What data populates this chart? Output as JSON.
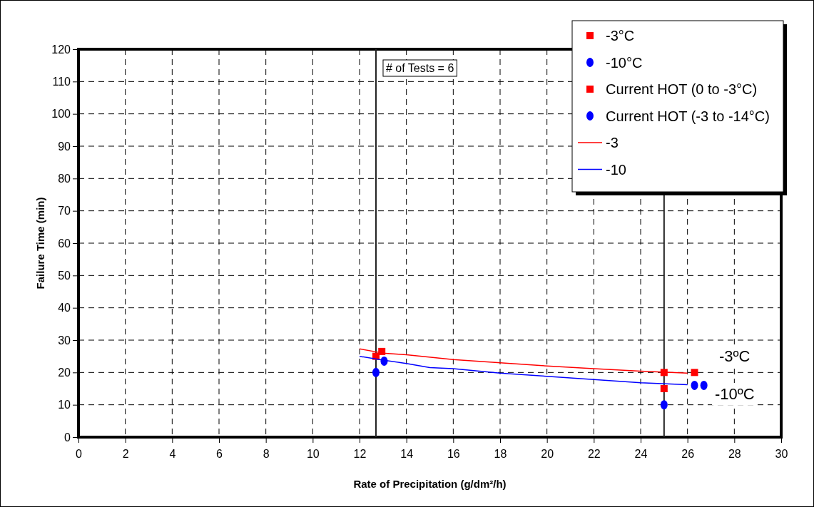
{
  "chart_data": {
    "type": "scatter",
    "xlabel": "Rate of Precipitation (g/dm²/h)",
    "ylabel": "Failure Time (min)",
    "xlim": [
      0,
      30
    ],
    "xticks": [
      0,
      2,
      4,
      6,
      8,
      10,
      12,
      14,
      16,
      18,
      20,
      22,
      24,
      26,
      28,
      30
    ],
    "ylim": [
      0,
      120
    ],
    "yticks": [
      0,
      10,
      20,
      30,
      40,
      50,
      60,
      70,
      80,
      90,
      100,
      110,
      120
    ],
    "grid": true,
    "legend": "top right",
    "series": [
      {
        "name": "-3°C",
        "marker": "square",
        "color": "#ff0000",
        "x": [
          12.95,
          25,
          26.3
        ],
        "values": [
          26.5,
          20,
          20
        ]
      },
      {
        "name": "-10°C",
        "marker": "circle",
        "color": "#0000ff",
        "x": [
          13.05,
          26.3,
          26.7
        ],
        "values": [
          23.5,
          16,
          16
        ]
      },
      {
        "name": "Current HOT (0 to -3°C)",
        "marker": "square",
        "color": "#ff0000",
        "x": [
          12.7,
          25
        ],
        "values": [
          25,
          15
        ]
      },
      {
        "name": "Current HOT (-3 to -14°C)",
        "marker": "circle",
        "color": "#0000ff",
        "x": [
          12.7,
          25
        ],
        "values": [
          20,
          10
        ]
      },
      {
        "name": "-3",
        "type": "line",
        "marker": "none",
        "color": "#ff0000",
        "x": [
          12,
          13,
          14,
          16,
          18,
          20,
          22,
          24,
          26
        ],
        "values": [
          27.3,
          26,
          25.5,
          24,
          23,
          22,
          21.2,
          20.4,
          19.8
        ]
      },
      {
        "name": "-10",
        "type": "line",
        "marker": "none",
        "color": "#0000ff",
        "x": [
          12,
          13,
          14,
          15,
          16,
          18,
          20,
          22,
          24,
          26
        ],
        "values": [
          25,
          23.8,
          22.8,
          21.5,
          21.2,
          19.8,
          18.8,
          17.8,
          16.8,
          16.2
        ]
      }
    ],
    "ref_lines": [
      {
        "axis": "x",
        "value": 12.7
      },
      {
        "axis": "x",
        "value": 25
      }
    ],
    "annotations": [
      "# of Tests = 6",
      "-3ºC",
      "-10ºC"
    ]
  }
}
